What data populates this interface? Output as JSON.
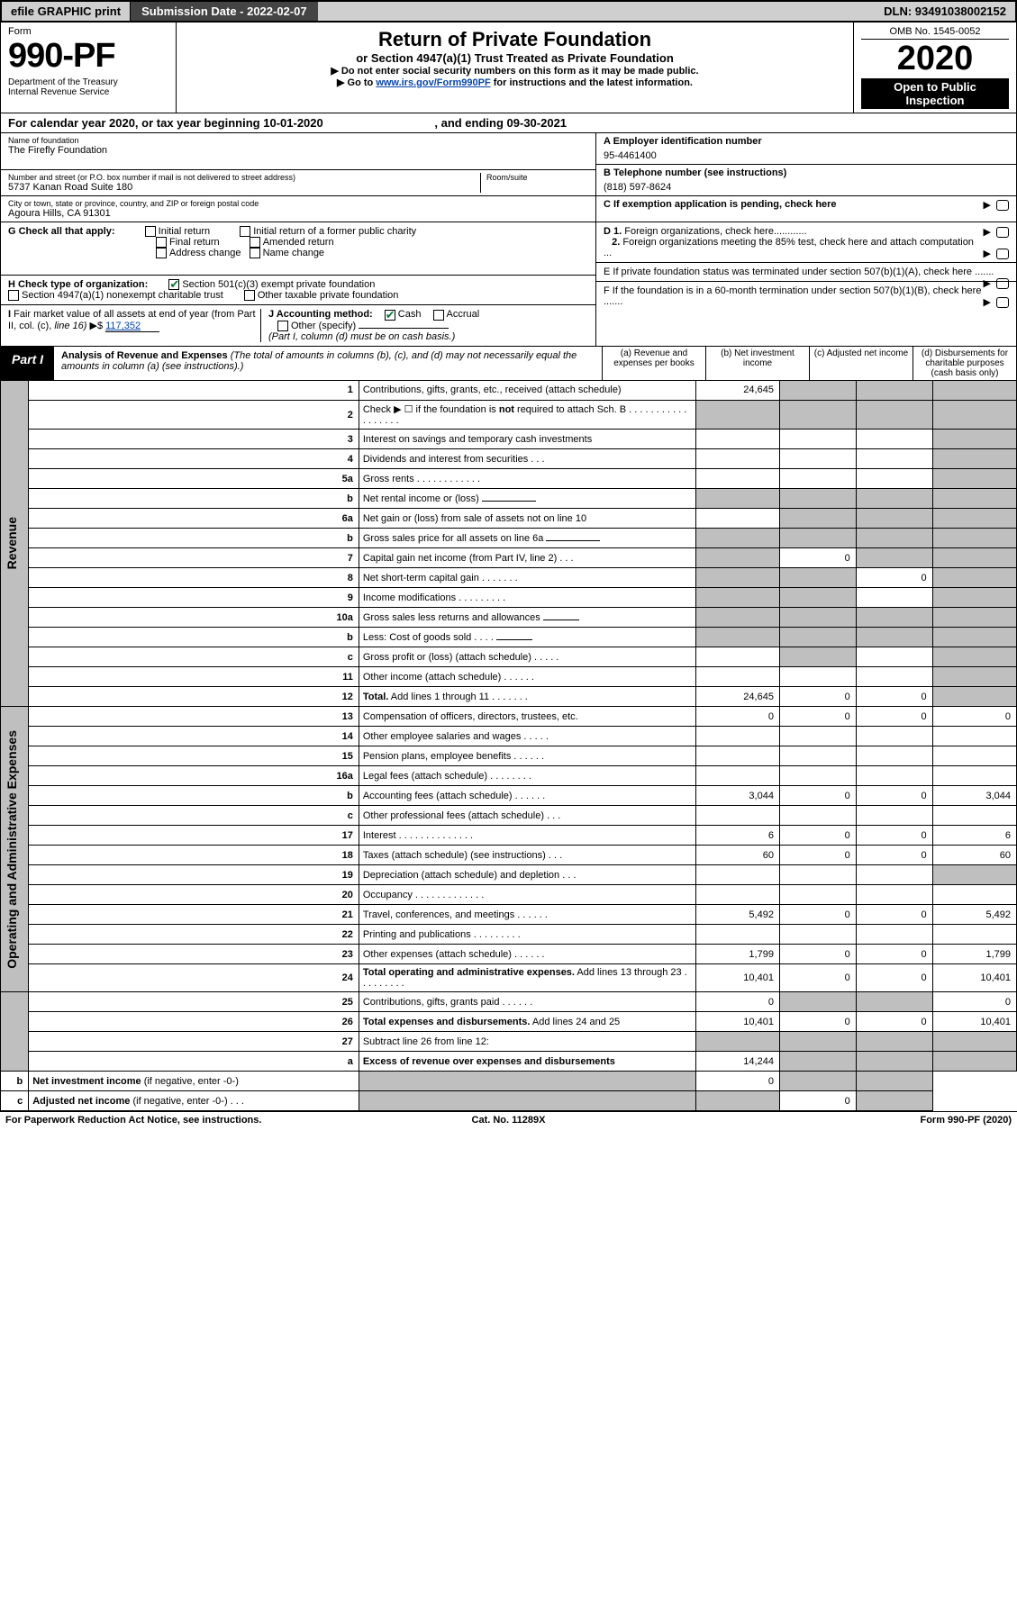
{
  "topbar": {
    "efile": "efile GRAPHIC print",
    "submission_label": "Submission Date - 2022-02-07",
    "dln": "DLN: 93491038002152"
  },
  "header": {
    "form_label": "Form",
    "form_num": "990-PF",
    "dept": "Department of the Treasury\nInternal Revenue Service",
    "title": "Return of Private Foundation",
    "sub1": "or Section 4947(a)(1) Trust Treated as Private Foundation",
    "sub2a": "▶ Do not enter social security numbers on this form as it may be made public.",
    "sub2b_pre": "▶ Go to ",
    "sub2b_link": "www.irs.gov/Form990PF",
    "sub2b_post": " for instructions and the latest information.",
    "omb": "OMB No. 1545-0052",
    "year": "2020",
    "open": "Open to Public Inspection"
  },
  "calyear": {
    "text_pre": "For calendar year 2020, or tax year beginning ",
    "begin": "10-01-2020",
    "mid": " , and ending ",
    "end": "09-30-2021"
  },
  "id": {
    "name_lbl": "Name of foundation",
    "name": "The Firefly Foundation",
    "ein_lbl": "A Employer identification number",
    "ein": "95-4461400",
    "addr_lbl": "Number and street (or P.O. box number if mail is not delivered to street address)",
    "room_lbl": "Room/suite",
    "addr": "5737 Kanan Road Suite 180",
    "tel_lbl": "B Telephone number (see instructions)",
    "tel": "(818) 597-8624",
    "city_lbl": "City or town, state or province, country, and ZIP or foreign postal code",
    "city": "Agoura Hills, CA  91301",
    "c_lbl": "C If exemption application is pending, check here"
  },
  "checks": {
    "g_lbl": "G Check all that apply:",
    "g1": "Initial return",
    "g2": "Initial return of a former public charity",
    "g3": "Final return",
    "g4": "Amended return",
    "g5": "Address change",
    "g6": "Name change",
    "h_lbl": "H Check type of organization:",
    "h1": "Section 501(c)(3) exempt private foundation",
    "h2": "Section 4947(a)(1) nonexempt charitable trust",
    "h3": "Other taxable private foundation",
    "i_lbl": "I Fair market value of all assets at end of year (from Part II, col. (c), line 16) ▶$ ",
    "i_val": "117,352",
    "j_lbl": "J Accounting method:",
    "j1": "Cash",
    "j2": "Accrual",
    "j3": "Other (specify)",
    "j_note": "(Part I, column (d) must be on cash basis.)",
    "d1": "D 1. Foreign organizations, check here............",
    "d2": "2. Foreign organizations meeting the 85% test, check here and attach computation ...",
    "e": "E  If private foundation status was terminated under section 507(b)(1)(A), check here .......",
    "f": "F  If the foundation is in a 60-month termination under section 507(b)(1)(B), check here ......."
  },
  "part1": {
    "tag": "Part I",
    "title": "Analysis of Revenue and Expenses",
    "note": " (The total of amounts in columns (b), (c), and (d) may not necessarily equal the amounts in column (a) (see instructions).)",
    "col_a": "(a)  Revenue and expenses per books",
    "col_b": "(b)  Net investment income",
    "col_c": "(c)  Adjusted net income",
    "col_d": "(d)  Disbursements for charitable purposes (cash basis only)"
  },
  "side": {
    "revenue": "Revenue",
    "expenses": "Operating and Administrative Expenses"
  },
  "rows": [
    {
      "n": "1",
      "d": "Contributions, gifts, grants, etc., received (attach schedule)",
      "a": "24,645",
      "b": "s",
      "c": "s",
      "e": "s"
    },
    {
      "n": "2",
      "d": "Check ▶ ☐ if the foundation is <b>not</b> required to attach Sch. B   .  .  .  .  .  .  .  .  .  .  .  .  .  .  .  .  .  .",
      "a": "s",
      "b": "s",
      "c": "s",
      "e": "s"
    },
    {
      "n": "3",
      "d": "Interest on savings and temporary cash investments",
      "a": "",
      "b": "",
      "c": "",
      "e": "s"
    },
    {
      "n": "4",
      "d": "Dividends and interest from securities    .   .   .",
      "a": "",
      "b": "",
      "c": "",
      "e": "s"
    },
    {
      "n": "5a",
      "d": "Gross rents    .   .   .   .   .   .   .   .   .   .   .   .",
      "a": "",
      "b": "",
      "c": "",
      "e": "s"
    },
    {
      "n": "b",
      "d": "Net rental income or (loss)  <span class='underline'></span>",
      "a": "s",
      "b": "s",
      "c": "s",
      "e": "s"
    },
    {
      "n": "6a",
      "d": "Net gain or (loss) from sale of assets not on line 10",
      "a": "",
      "b": "s",
      "c": "s",
      "e": "s"
    },
    {
      "n": "b",
      "d": "Gross sales price for all assets on line 6a <span class='underline'></span>",
      "a": "s",
      "b": "s",
      "c": "s",
      "e": "s"
    },
    {
      "n": "7",
      "d": "Capital gain net income (from Part IV, line 2)   .   .   .",
      "a": "s",
      "b": "0",
      "c": "s",
      "e": "s"
    },
    {
      "n": "8",
      "d": "Net short-term capital gain   .   .   .   .   .   .   .",
      "a": "s",
      "b": "s",
      "c": "0",
      "e": "s"
    },
    {
      "n": "9",
      "d": "Income modifications   .   .   .   .   .   .   .   .   .",
      "a": "s",
      "b": "s",
      "c": "",
      "e": "s"
    },
    {
      "n": "10a",
      "d": "Gross sales less returns and allowances <span class='underline' style='min-width:40px'></span>",
      "a": "s",
      "b": "s",
      "c": "s",
      "e": "s"
    },
    {
      "n": "b",
      "d": "Less: Cost of goods sold    .   .   .   . <span class='underline' style='min-width:40px'></span>",
      "a": "s",
      "b": "s",
      "c": "s",
      "e": "s"
    },
    {
      "n": "c",
      "d": "Gross profit or (loss) (attach schedule)    .   .   .   .   .",
      "a": "",
      "b": "s",
      "c": "",
      "e": "s"
    },
    {
      "n": "11",
      "d": "Other income (attach schedule)    .   .   .   .   .   .",
      "a": "",
      "b": "",
      "c": "",
      "e": "s"
    },
    {
      "n": "12",
      "d": "<b>Total.</b> Add lines 1 through 11   .   .   .   .   .   .   .",
      "a": "24,645",
      "b": "0",
      "c": "0",
      "e": "s"
    },
    {
      "n": "13",
      "d": "Compensation of officers, directors, trustees, etc.",
      "a": "0",
      "b": "0",
      "c": "0",
      "e": "0"
    },
    {
      "n": "14",
      "d": "Other employee salaries and wages   .   .   .   .   .",
      "a": "",
      "b": "",
      "c": "",
      "e": ""
    },
    {
      "n": "15",
      "d": "Pension plans, employee benefits   .   .   .   .   .   .",
      "a": "",
      "b": "",
      "c": "",
      "e": ""
    },
    {
      "n": "16a",
      "d": "Legal fees (attach schedule)   .   .   .   .   .   .   .   .",
      "a": "",
      "b": "",
      "c": "",
      "e": ""
    },
    {
      "n": "b",
      "d": "Accounting fees (attach schedule)   .   .   .   .   .   .",
      "a": "3,044",
      "b": "0",
      "c": "0",
      "e": "3,044"
    },
    {
      "n": "c",
      "d": "Other professional fees (attach schedule)    .   .   .",
      "a": "",
      "b": "",
      "c": "",
      "e": ""
    },
    {
      "n": "17",
      "d": "Interest   .   .   .   .   .   .   .   .   .   .   .   .   .   .",
      "a": "6",
      "b": "0",
      "c": "0",
      "e": "6"
    },
    {
      "n": "18",
      "d": "Taxes (attach schedule) (see instructions)    .   .   .",
      "a": "60",
      "b": "0",
      "c": "0",
      "e": "60"
    },
    {
      "n": "19",
      "d": "Depreciation (attach schedule) and depletion   .   .   .",
      "a": "",
      "b": "",
      "c": "",
      "e": "s"
    },
    {
      "n": "20",
      "d": "Occupancy   .   .   .   .   .   .   .   .   .   .   .   .   .",
      "a": "",
      "b": "",
      "c": "",
      "e": ""
    },
    {
      "n": "21",
      "d": "Travel, conferences, and meetings   .   .   .   .   .   .",
      "a": "5,492",
      "b": "0",
      "c": "0",
      "e": "5,492"
    },
    {
      "n": "22",
      "d": "Printing and publications   .   .   .   .   .   .   .   .   .",
      "a": "",
      "b": "",
      "c": "",
      "e": ""
    },
    {
      "n": "23",
      "d": "Other expenses (attach schedule)   .   .   .   .   .   .",
      "a": "1,799",
      "b": "0",
      "c": "0",
      "e": "1,799"
    },
    {
      "n": "24",
      "d": "<b>Total operating and administrative expenses.</b> Add lines 13 through 23   .   .   .   .   .   .   .   .   .",
      "a": "10,401",
      "b": "0",
      "c": "0",
      "e": "10,401"
    },
    {
      "n": "25",
      "d": "Contributions, gifts, grants paid    .   .   .   .   .   .",
      "a": "0",
      "b": "s",
      "c": "s",
      "e": "0"
    },
    {
      "n": "26",
      "d": "<b>Total expenses and disbursements.</b> Add lines 24 and 25",
      "a": "10,401",
      "b": "0",
      "c": "0",
      "e": "10,401"
    },
    {
      "n": "27",
      "d": "Subtract line 26 from line 12:",
      "a": "s",
      "b": "s",
      "c": "s",
      "e": "s"
    },
    {
      "n": "a",
      "d": "<b>Excess of revenue over expenses and disbursements</b>",
      "a": "14,244",
      "b": "s",
      "c": "s",
      "e": "s"
    },
    {
      "n": "b",
      "d": "<b>Net investment income</b> (if negative, enter -0-)",
      "a": "s",
      "b": "0",
      "c": "s",
      "e": "s"
    },
    {
      "n": "c",
      "d": "<b>Adjusted net income</b> (if negative, enter -0-)   .   .   .",
      "a": "s",
      "b": "s",
      "c": "0",
      "e": "s"
    }
  ],
  "footer": {
    "left": "For Paperwork Reduction Act Notice, see instructions.",
    "mid": "Cat. No. 11289X",
    "right": "Form 990-PF (2020)"
  }
}
